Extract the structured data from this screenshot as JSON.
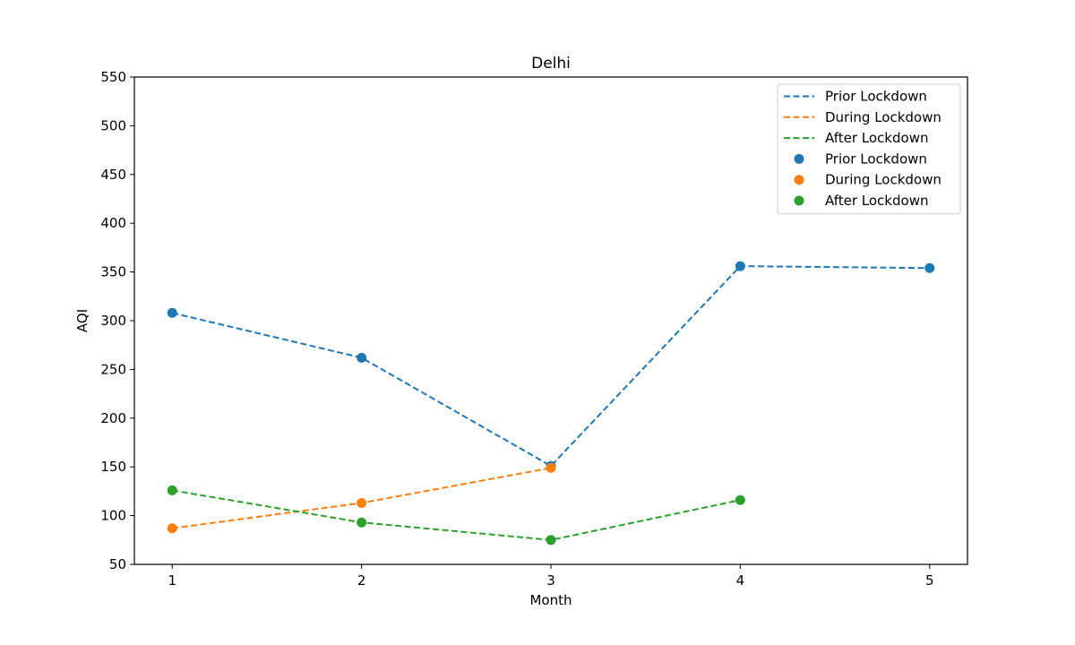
{
  "chart_data": {
    "type": "line",
    "title": "Delhi",
    "xlabel": "Month",
    "ylabel": "AQI",
    "xlim": [
      0.8,
      5.2
    ],
    "ylim": [
      50,
      550
    ],
    "xticks": [
      1,
      2,
      3,
      4,
      5
    ],
    "yticks": [
      50,
      100,
      150,
      200,
      250,
      300,
      350,
      400,
      450,
      500,
      550
    ],
    "grid": false,
    "legend_position": "top-right",
    "series": [
      {
        "name": "Prior Lockdown",
        "color": "#1f77b4",
        "x": [
          1,
          2,
          3,
          4,
          5
        ],
        "values": [
          308,
          262,
          151,
          356,
          354
        ]
      },
      {
        "name": "During Lockdown",
        "color": "#ff7f0e",
        "x": [
          1,
          2,
          3
        ],
        "values": [
          87,
          113,
          149
        ]
      },
      {
        "name": "After Lockdown",
        "color": "#2ca02c",
        "x": [
          1,
          2,
          3,
          4
        ],
        "values": [
          126,
          93,
          75,
          116
        ]
      }
    ]
  }
}
